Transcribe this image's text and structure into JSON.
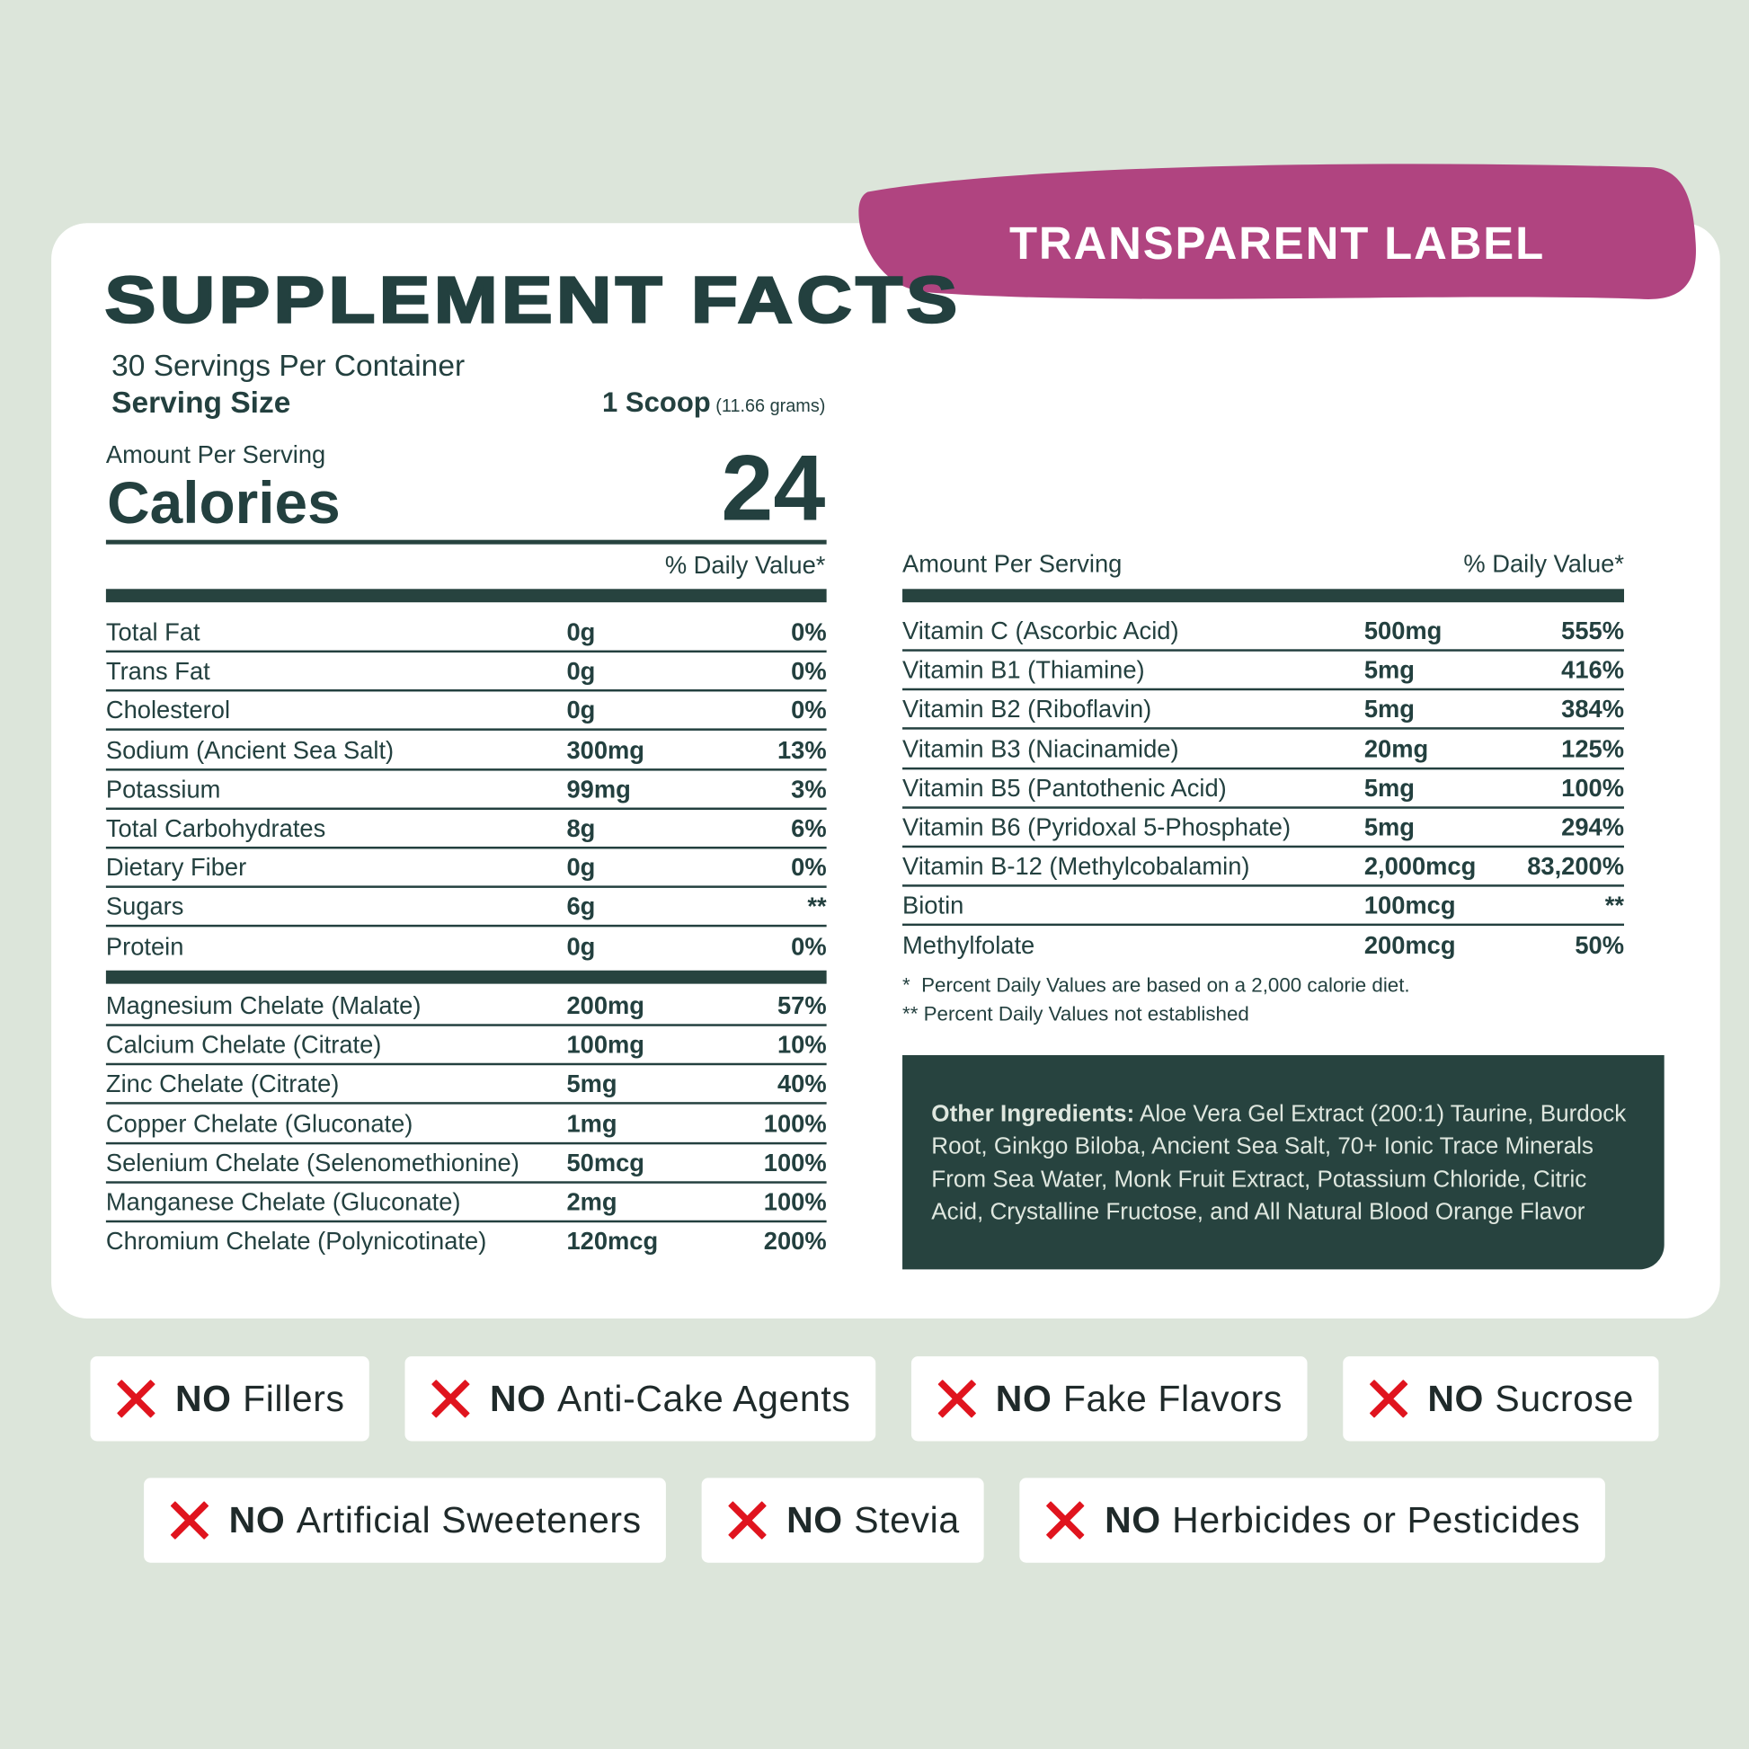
{
  "badge": "TRANSPARENT LABEL",
  "title": "SUPPLEMENT FACTS",
  "servings": "30 Servings Per Container",
  "serving_size": {
    "label": "Serving Size",
    "amount": "1 Scoop",
    "detail": "(11.66 grams)"
  },
  "calories": {
    "heading": "Amount Per Serving",
    "label": "Calories",
    "value": "24"
  },
  "left_table": {
    "header": "% Daily Value*",
    "groups": [
      [
        [
          "Total Fat",
          "0g",
          "0%"
        ],
        [
          "Trans Fat",
          "0g",
          "0%"
        ],
        [
          "Cholesterol",
          "0g",
          "0%"
        ],
        [
          "Sodium (Ancient Sea Salt)",
          "300mg",
          "13%"
        ],
        [
          "Potassium",
          "99mg",
          "3%"
        ],
        [
          "Total Carbohydrates",
          "8g",
          "6%"
        ],
        [
          "Dietary Fiber",
          "0g",
          "0%"
        ],
        [
          "Sugars",
          "6g",
          "**"
        ],
        [
          "Protein",
          "0g",
          "0%"
        ]
      ],
      [
        [
          "Magnesium Chelate (Malate)",
          "200mg",
          "57%"
        ],
        [
          "Calcium Chelate (Citrate)",
          "100mg",
          "10%"
        ],
        [
          "Zinc Chelate (Citrate)",
          "5mg",
          "40%"
        ],
        [
          "Copper Chelate (Gluconate)",
          "1mg",
          "100%"
        ],
        [
          "Selenium Chelate (Selenomethionine)",
          "50mcg",
          "100%"
        ],
        [
          "Manganese Chelate (Gluconate)",
          "2mg",
          "100%"
        ],
        [
          "Chromium Chelate (Polynicotinate)",
          "120mcg",
          "200%"
        ]
      ]
    ]
  },
  "right_table": {
    "header": [
      "Amount Per Serving",
      "% Daily Value*"
    ],
    "rows": [
      [
        "Vitamin C (Ascorbic Acid)",
        "500mg",
        "555%"
      ],
      [
        "Vitamin B1 (Thiamine)",
        "5mg",
        "416%"
      ],
      [
        "Vitamin B2 (Riboflavin)",
        "5mg",
        "384%"
      ],
      [
        "Vitamin B3 (Niacinamide)",
        "20mg",
        "125%"
      ],
      [
        "Vitamin B5 (Pantothenic Acid)",
        "5mg",
        "100%"
      ],
      [
        "Vitamin B6 (Pyridoxal 5-Phosphate)",
        "5mg",
        "294%"
      ],
      [
        "Vitamin B-12 (Methylcobalamin)",
        "2,000mcg",
        "83,200%"
      ],
      [
        "Biotin",
        "100mcg",
        "**"
      ],
      [
        "Methylfolate",
        "200mcg",
        "50%"
      ]
    ]
  },
  "footnotes": [
    "*  Percent Daily Values are based on a 2,000 calorie diet.",
    "** Percent Daily Values not established"
  ],
  "other_ingredients": {
    "label": "Other Ingredients:",
    "text": "Aloe Vera Gel Extract (200:1) Taurine, Burdock Root, Ginkgo Biloba, Ancient Sea Salt, 70+ Ionic Trace Minerals From Sea Water, Monk Fruit Extract, Potassium Chloride, Citric Acid, Crystalline Fructose, and All Natural Blood Orange Flavor"
  },
  "claims": [
    [
      {
        "mark": "NO",
        "text": "Fillers"
      },
      {
        "mark": "NO",
        "text": "Anti-Cake Agents"
      },
      {
        "mark": "NO",
        "text": "Fake Flavors"
      },
      {
        "mark": "NO",
        "text": "Sucrose"
      }
    ],
    [
      {
        "mark": "NO",
        "text": "Artificial Sweeteners"
      },
      {
        "mark": "NO",
        "text": "Stevia"
      },
      {
        "mark": "NO",
        "text": "Herbicides or Pesticides"
      }
    ]
  ]
}
